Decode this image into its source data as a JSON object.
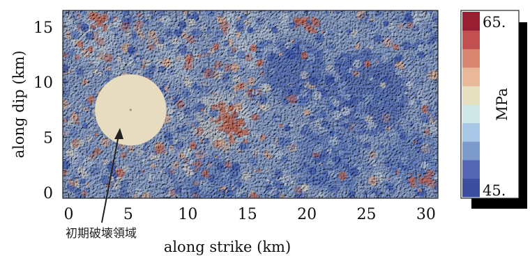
{
  "chart_data": {
    "type": "heatmap",
    "xlabel": "along strike (km)",
    "ylabel": "along dip (km)",
    "xlim": [
      -0.5,
      31
    ],
    "ylim": [
      -0.5,
      16.5
    ],
    "x_ticks": [
      0,
      5,
      10,
      15,
      20,
      25,
      30
    ],
    "y_ticks": [
      0,
      5,
      10,
      15
    ],
    "x_tick_labels": [
      "0",
      "5",
      "10",
      "15",
      "20",
      "25",
      "30"
    ],
    "y_tick_labels": [
      "0",
      "5",
      "10",
      "15"
    ],
    "nucleation_zone": {
      "label": "初期破壊領域",
      "center_x_km": 5.2,
      "center_y_km": 7.5,
      "radius_km": 3.0,
      "color": "#e8dcc0"
    },
    "colorbar": {
      "label": "MPa",
      "min": 45,
      "max": 65,
      "min_label": "45.",
      "max_label": "65.",
      "colors": [
        "#3b4ea0",
        "#5566b4",
        "#7d9acd",
        "#a9c8e8",
        "#cfe6e6",
        "#e6e0c0",
        "#e8b898",
        "#d98670",
        "#c25050",
        "#981e32"
      ]
    },
    "field_colors": [
      "#3f5ab0",
      "#5a78c0",
      "#8ea6cf",
      "#b9c6d8",
      "#d2cec4",
      "#d8a990",
      "#c46b58"
    ]
  }
}
